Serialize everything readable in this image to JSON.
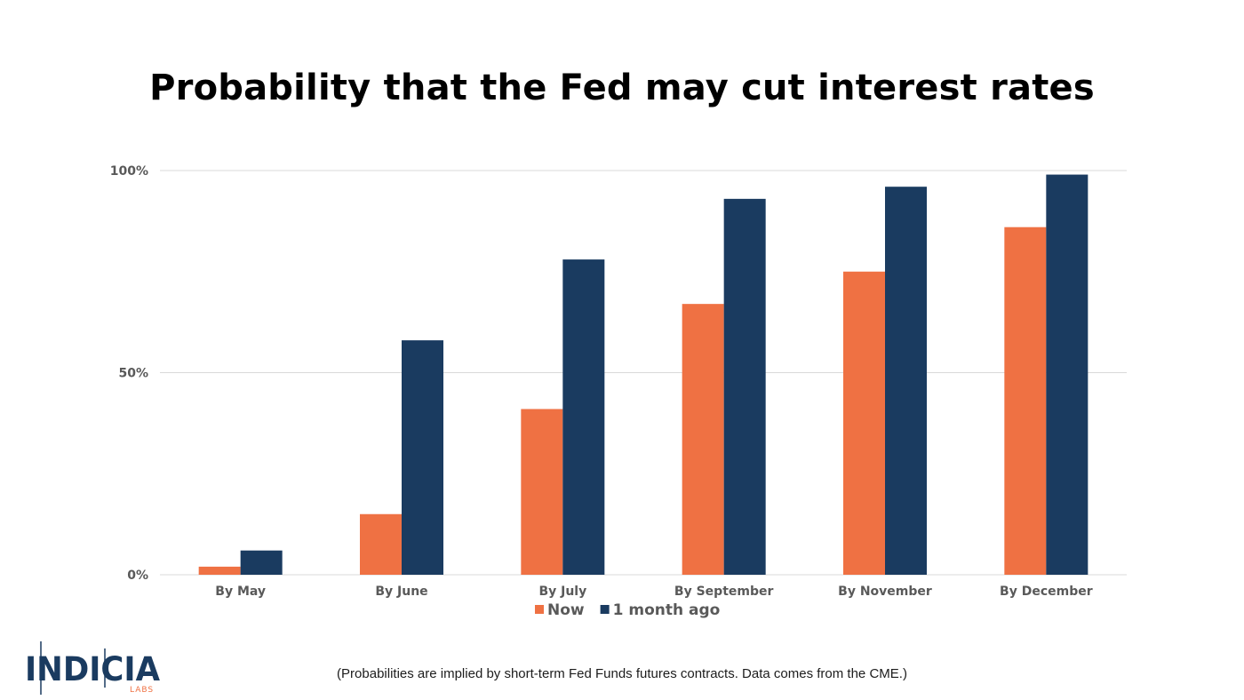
{
  "chart_data": {
    "type": "bar",
    "title": "Probability that the Fed may cut interest rates",
    "categories": [
      "By May",
      "By June",
      "By July",
      "By September",
      "By November",
      "By December"
    ],
    "series": [
      {
        "name": "Now",
        "color": "#ef7143",
        "values": [
          2,
          15,
          41,
          67,
          75,
          86
        ]
      },
      {
        "name": "1 month ago",
        "color": "#1a3b60",
        "values": [
          6,
          58,
          78,
          93,
          96,
          99
        ]
      }
    ],
    "yticks": [
      "0%",
      "50%",
      "100%"
    ],
    "ylim": [
      0,
      100
    ],
    "grid": true,
    "legend_position": "bottom"
  },
  "footnote": "(Probabilities are implied by short-term Fed Funds futures contracts. Data comes from the CME.)",
  "logo": {
    "text": "INDICIA",
    "subtext": "LABS",
    "colors": {
      "navy": "#1a3b60",
      "orange": "#ef7143"
    }
  }
}
